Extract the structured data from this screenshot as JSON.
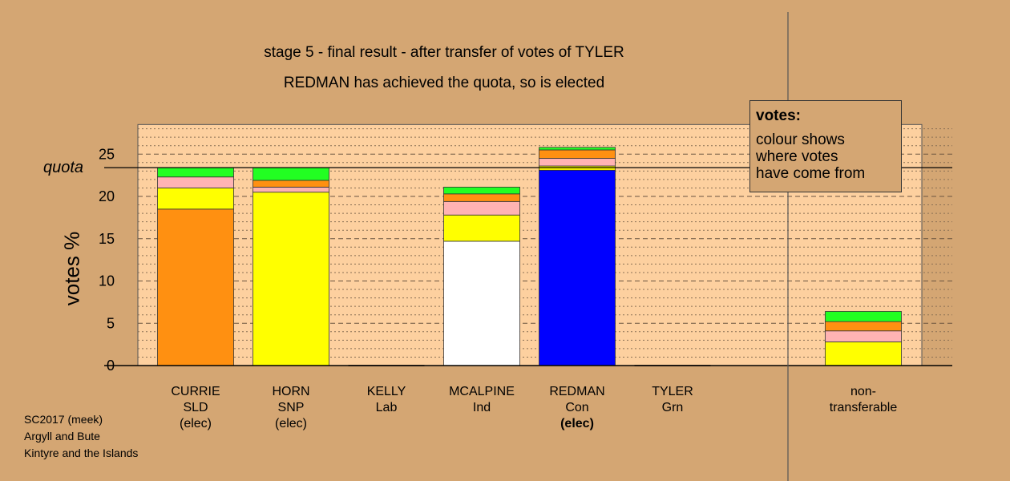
{
  "titles": {
    "line1": "stage 5 - final result - after transfer of votes of TYLER",
    "line2": "REDMAN has achieved the quota, so is elected"
  },
  "quota_label": "quota",
  "legend": {
    "title": "votes:",
    "body": [
      "colour shows",
      "where votes",
      "have come from"
    ]
  },
  "footer": [
    "SC2017 (meek)",
    "Argyll and Bute",
    "Kintyre and the Islands"
  ],
  "candidates": [
    {
      "name": "CURRIE",
      "party": "SLD",
      "status": "(elec)",
      "status_bold": false
    },
    {
      "name": "HORN",
      "party": "SNP",
      "status": "(elec)",
      "status_bold": false
    },
    {
      "name": "KELLY",
      "party": "Lab",
      "status": "",
      "status_bold": false
    },
    {
      "name": "MCALPINE",
      "party": "Ind",
      "status": "",
      "status_bold": false
    },
    {
      "name": "REDMAN",
      "party": "Con",
      "status": "(elec)",
      "status_bold": true
    },
    {
      "name": "TYLER",
      "party": "Grn",
      "status": "",
      "status_bold": false
    },
    {
      "name": "non-",
      "party": "transferable",
      "status": "",
      "status_bold": false
    }
  ],
  "chart_data": {
    "type": "bar",
    "stacked": true,
    "title": "stage 5 - final result - after transfer of votes of TYLER",
    "subtitle": "REDMAN has achieved the quota, so is elected",
    "ylabel": "votes %",
    "ylim": [
      0,
      28.5
    ],
    "yticks": [
      0,
      5,
      10,
      15,
      20,
      25
    ],
    "quota": 23.4,
    "categories": [
      "CURRIE",
      "HORN",
      "KELLY",
      "MCALPINE",
      "REDMAN",
      "TYLER",
      "non-transferable"
    ],
    "bars": [
      {
        "category": "CURRIE",
        "segments": [
          {
            "color": "#ff9011",
            "value": 18.5
          },
          {
            "color": "#ffff00",
            "value": 2.5
          },
          {
            "color": "#ffb3b3",
            "value": 1.3
          },
          {
            "color": "#22ff22",
            "value": 1.1
          }
        ]
      },
      {
        "category": "HORN",
        "segments": [
          {
            "color": "#ffff00",
            "value": 20.5
          },
          {
            "color": "#ffb3b3",
            "value": 0.6
          },
          {
            "color": "#ff9011",
            "value": 0.8
          },
          {
            "color": "#22ff22",
            "value": 1.5
          }
        ]
      },
      {
        "category": "KELLY",
        "segments": []
      },
      {
        "category": "MCALPINE",
        "segments": [
          {
            "color": "#ffffff",
            "value": 14.7
          },
          {
            "color": "#ffff00",
            "value": 3.1
          },
          {
            "color": "#ffb3b3",
            "value": 1.6
          },
          {
            "color": "#ff9011",
            "value": 0.9
          },
          {
            "color": "#22ff22",
            "value": 0.8
          }
        ]
      },
      {
        "category": "REDMAN",
        "segments": [
          {
            "color": "#0000ff",
            "value": 23.1
          },
          {
            "color": "#ffff00",
            "value": 0.5
          },
          {
            "color": "#ffb3b3",
            "value": 0.9
          },
          {
            "color": "#ff9011",
            "value": 1.0
          },
          {
            "color": "#22ff22",
            "value": 0.3
          }
        ]
      },
      {
        "category": "TYLER",
        "segments": []
      },
      {
        "category": "non-transferable",
        "segments": [
          {
            "color": "#ffff00",
            "value": 2.8
          },
          {
            "color": "#ffb3b3",
            "value": 1.3
          },
          {
            "color": "#ff9011",
            "value": 1.1
          },
          {
            "color": "#22ff22",
            "value": 1.2
          }
        ]
      }
    ],
    "colors": {
      "background": "#d4a673",
      "plot_background": "#fdd09f"
    }
  }
}
